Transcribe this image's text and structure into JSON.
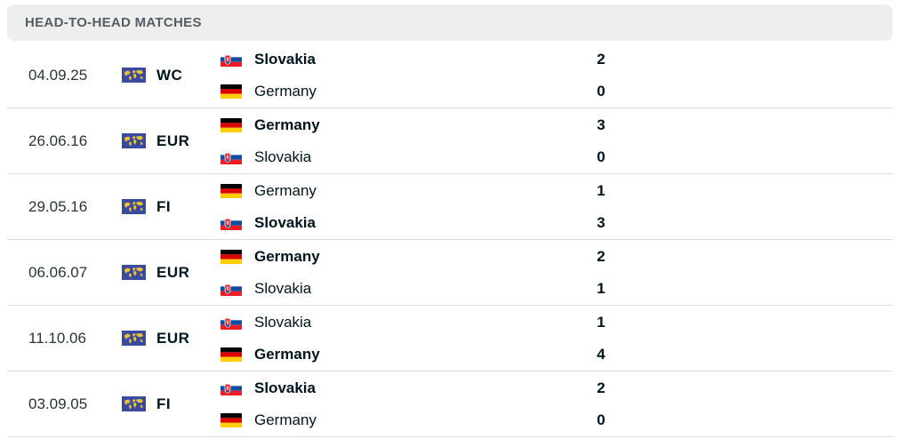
{
  "header": {
    "title": "HEAD-TO-HEAD MATCHES"
  },
  "colors": {
    "header_bg": "#eeeeef",
    "competition_icon_bg": "#3a4a9c",
    "competition_icon_fg": "#f2c230"
  },
  "matches": [
    {
      "date": "04.09.25",
      "competition": "WC",
      "home": {
        "name": "Slovakia",
        "flag": "slovakia-flag",
        "score": "2",
        "winner": true
      },
      "away": {
        "name": "Germany",
        "flag": "germany-flag",
        "score": "0",
        "winner": false
      }
    },
    {
      "date": "26.06.16",
      "competition": "EUR",
      "home": {
        "name": "Germany",
        "flag": "germany-flag",
        "score": "3",
        "winner": true
      },
      "away": {
        "name": "Slovakia",
        "flag": "slovakia-flag",
        "score": "0",
        "winner": false
      }
    },
    {
      "date": "29.05.16",
      "competition": "FI",
      "home": {
        "name": "Germany",
        "flag": "germany-flag",
        "score": "1",
        "winner": false
      },
      "away": {
        "name": "Slovakia",
        "flag": "slovakia-flag",
        "score": "3",
        "winner": true
      }
    },
    {
      "date": "06.06.07",
      "competition": "EUR",
      "home": {
        "name": "Germany",
        "flag": "germany-flag",
        "score": "2",
        "winner": true
      },
      "away": {
        "name": "Slovakia",
        "flag": "slovakia-flag",
        "score": "1",
        "winner": false
      }
    },
    {
      "date": "11.10.06",
      "competition": "EUR",
      "home": {
        "name": "Slovakia",
        "flag": "slovakia-flag",
        "score": "1",
        "winner": false
      },
      "away": {
        "name": "Germany",
        "flag": "germany-flag",
        "score": "4",
        "winner": true
      }
    },
    {
      "date": "03.09.05",
      "competition": "FI",
      "home": {
        "name": "Slovakia",
        "flag": "slovakia-flag",
        "score": "2",
        "winner": true
      },
      "away": {
        "name": "Germany",
        "flag": "germany-flag",
        "score": "0",
        "winner": false
      }
    }
  ]
}
